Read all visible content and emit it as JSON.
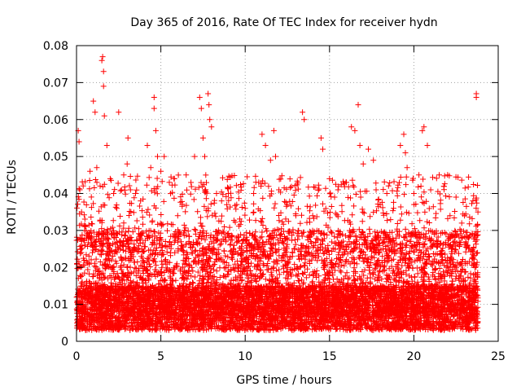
{
  "chart_data": {
    "type": "scatter",
    "title": "Day 365 of 2016, Rate Of TEC Index for receiver hydn",
    "xlabel": "GPS time / hours",
    "ylabel": "ROTI / TECUs",
    "xlim": [
      0,
      25
    ],
    "ylim": [
      0,
      0.08
    ],
    "xticks": [
      0,
      5,
      10,
      15,
      20,
      25
    ],
    "yticks": [
      0,
      0.01,
      0.02,
      0.03,
      0.04,
      0.05,
      0.06,
      0.07,
      0.08
    ],
    "xtick_labels": [
      "0",
      "5",
      "10",
      "15",
      "20",
      "25"
    ],
    "ytick_labels": [
      "0",
      "0.01",
      "0.02",
      "0.03",
      "0.04",
      "0.05",
      "0.06",
      "0.07",
      "0.08"
    ],
    "grid": true,
    "marker": "+",
    "color": "#ff0000",
    "series": [
      {
        "name": "ROTI",
        "points": [
          [
            0.1,
            0.057
          ],
          [
            0.15,
            0.054
          ],
          [
            0.2,
            0.041
          ],
          [
            0.3,
            0.035
          ],
          [
            0.5,
            0.031
          ],
          [
            0.8,
            0.046
          ],
          [
            1.0,
            0.065
          ],
          [
            1.1,
            0.062
          ],
          [
            1.2,
            0.047
          ],
          [
            1.4,
            0.042
          ],
          [
            1.5,
            0.076
          ],
          [
            1.55,
            0.077
          ],
          [
            1.6,
            0.069
          ],
          [
            1.6,
            0.073
          ],
          [
            1.65,
            0.061
          ],
          [
            1.8,
            0.053
          ],
          [
            2.0,
            0.044
          ],
          [
            2.2,
            0.04
          ],
          [
            2.5,
            0.062
          ],
          [
            2.8,
            0.045
          ],
          [
            3.0,
            0.048
          ],
          [
            3.05,
            0.055
          ],
          [
            3.2,
            0.041
          ],
          [
            3.5,
            0.04
          ],
          [
            3.8,
            0.038
          ],
          [
            4.2,
            0.053
          ],
          [
            4.4,
            0.047
          ],
          [
            4.6,
            0.066
          ],
          [
            4.6,
            0.063
          ],
          [
            4.7,
            0.057
          ],
          [
            4.8,
            0.05
          ],
          [
            5.0,
            0.046
          ],
          [
            5.2,
            0.05
          ],
          [
            5.5,
            0.043
          ],
          [
            5.8,
            0.044
          ],
          [
            6.0,
            0.034
          ],
          [
            6.5,
            0.045
          ],
          [
            7.0,
            0.05
          ],
          [
            7.3,
            0.066
          ],
          [
            7.4,
            0.063
          ],
          [
            7.5,
            0.055
          ],
          [
            7.6,
            0.05
          ],
          [
            7.8,
            0.067
          ],
          [
            7.85,
            0.064
          ],
          [
            7.9,
            0.06
          ],
          [
            8.0,
            0.058
          ],
          [
            8.3,
            0.04
          ],
          [
            8.6,
            0.038
          ],
          [
            9.0,
            0.04
          ],
          [
            9.5,
            0.037
          ],
          [
            10.0,
            0.036
          ],
          [
            10.5,
            0.04
          ],
          [
            10.8,
            0.043
          ],
          [
            11.0,
            0.056
          ],
          [
            11.2,
            0.053
          ],
          [
            11.5,
            0.049
          ],
          [
            11.7,
            0.057
          ],
          [
            11.8,
            0.05
          ],
          [
            12.0,
            0.041
          ],
          [
            12.5,
            0.037
          ],
          [
            13.0,
            0.034
          ],
          [
            13.4,
            0.062
          ],
          [
            13.5,
            0.06
          ],
          [
            14.0,
            0.034
          ],
          [
            14.5,
            0.055
          ],
          [
            14.6,
            0.052
          ],
          [
            15.0,
            0.044
          ],
          [
            15.3,
            0.039
          ],
          [
            15.5,
            0.041
          ],
          [
            16.0,
            0.043
          ],
          [
            16.3,
            0.058
          ],
          [
            16.5,
            0.057
          ],
          [
            16.7,
            0.064
          ],
          [
            16.8,
            0.053
          ],
          [
            17.0,
            0.048
          ],
          [
            17.3,
            0.052
          ],
          [
            17.6,
            0.049
          ],
          [
            18.0,
            0.037
          ],
          [
            18.4,
            0.04
          ],
          [
            18.8,
            0.036
          ],
          [
            19.2,
            0.053
          ],
          [
            19.4,
            0.056
          ],
          [
            19.5,
            0.051
          ],
          [
            19.6,
            0.047
          ],
          [
            20.0,
            0.04
          ],
          [
            20.3,
            0.045
          ],
          [
            20.5,
            0.057
          ],
          [
            20.6,
            0.058
          ],
          [
            20.8,
            0.053
          ],
          [
            21.0,
            0.041
          ],
          [
            21.5,
            0.045
          ],
          [
            22.0,
            0.045
          ],
          [
            22.5,
            0.039
          ],
          [
            23.0,
            0.034
          ],
          [
            23.5,
            0.038
          ],
          [
            23.7,
            0.067
          ],
          [
            23.7,
            0.066
          ],
          [
            23.8,
            0.035
          ]
        ]
      }
    ],
    "dense_band": {
      "x_range": [
        0,
        23.8
      ],
      "y_floor": 0.003,
      "y_median": 0.011,
      "y_upper_typical": 0.03,
      "approx_point_count": 9000
    }
  }
}
